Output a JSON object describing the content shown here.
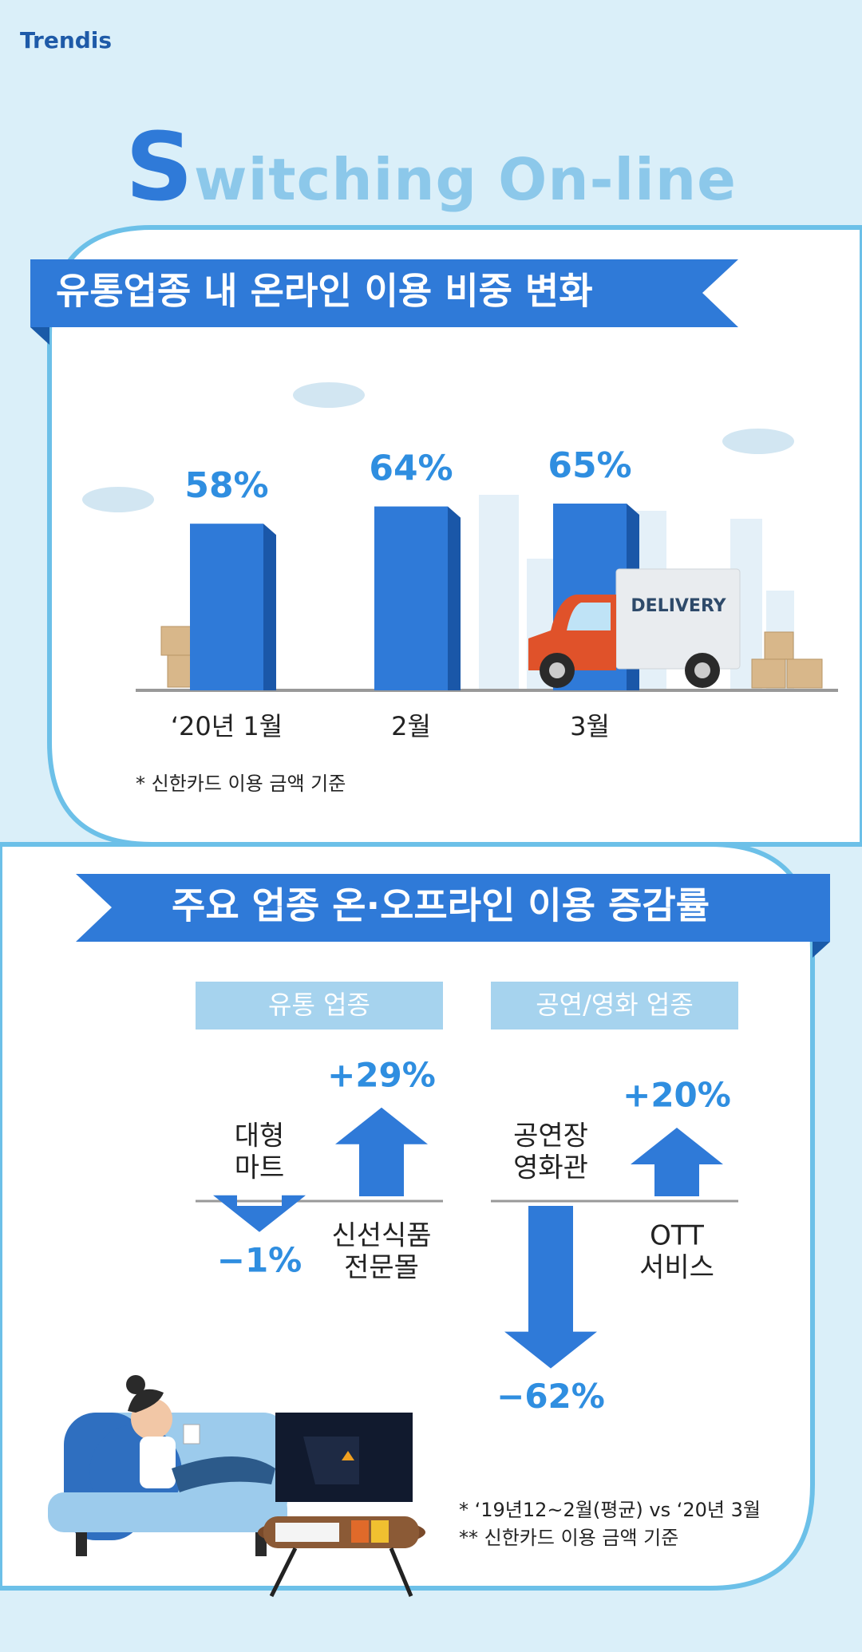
{
  "brand": "Trendis",
  "headline": "Switching On-line",
  "chart_data": [
    {
      "type": "bar",
      "title": "유통업종 내 온라인 이용 비중 변화",
      "categories": [
        "‘20년 1월",
        "2월",
        "3월"
      ],
      "values": [
        58,
        64,
        65
      ],
      "value_labels": [
        "58%",
        "64%",
        "65%"
      ],
      "color": "#2f7ad8",
      "truck_label": "DELIVERY",
      "note": "* 신한카드 이용 금액 기준"
    },
    {
      "type": "arrow",
      "title": "주요 업종 온·오프라인 이용 증감률",
      "color": "#2f7ad8",
      "groups": [
        {
          "name": "유통 업종",
          "categories": [
            [
              "대형",
              "마트"
            ],
            [
              "신선식품",
              "전문몰"
            ]
          ],
          "values": [
            -1,
            29
          ],
          "value_labels": [
            "−1%",
            "+29%"
          ]
        },
        {
          "name": "공연/영화 업종",
          "categories": [
            [
              "공연장",
              "영화관"
            ],
            [
              "OTT",
              "서비스"
            ]
          ],
          "values": [
            -62,
            20
          ],
          "value_labels": [
            "−62%",
            "+20%"
          ]
        }
      ],
      "notes": [
        "* ‘19년12~2월(평균) vs ‘20년 3월",
        "** 신한카드 이용 금액 기준"
      ]
    }
  ]
}
